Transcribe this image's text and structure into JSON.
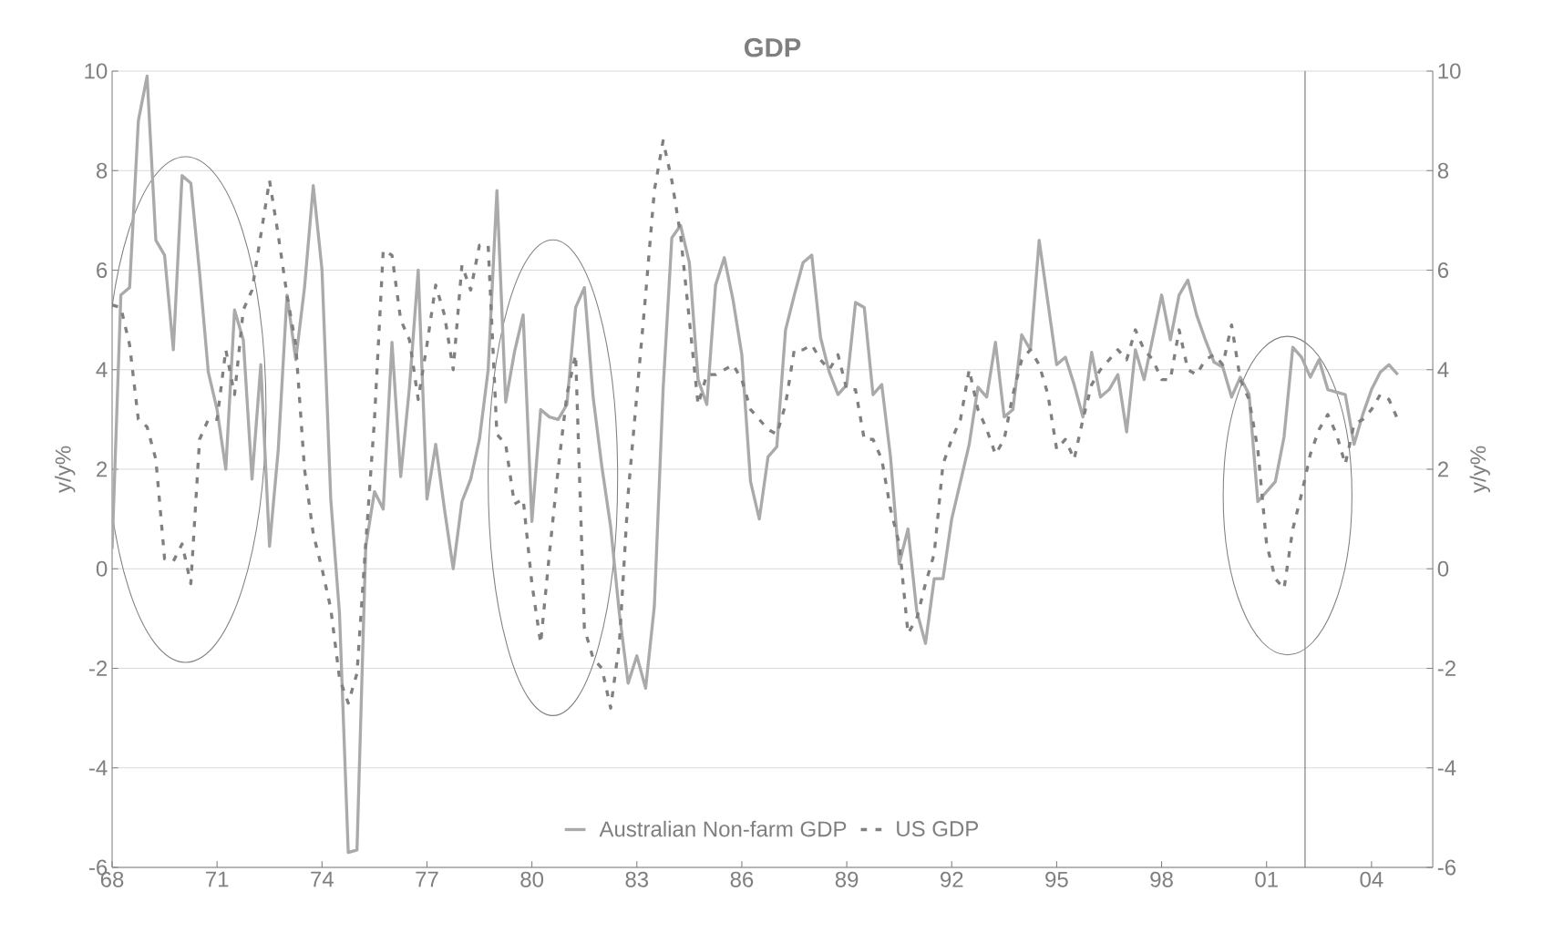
{
  "chart_data": {
    "type": "line",
    "title": "GDP",
    "ylabel": "y/y%",
    "y2label": "y/y%",
    "x": [
      1968,
      1968.25,
      1968.5,
      1968.75,
      1969,
      1969.25,
      1969.5,
      1969.75,
      1970,
      1970.25,
      1970.5,
      1970.75,
      1971,
      1971.25,
      1971.5,
      1971.75,
      1972,
      1972.25,
      1972.5,
      1972.75,
      1973,
      1973.25,
      1973.5,
      1973.75,
      1974,
      1974.25,
      1974.5,
      1974.75,
      1975,
      1975.25,
      1975.5,
      1975.75,
      1976,
      1976.25,
      1976.5,
      1976.75,
      1977,
      1977.25,
      1977.5,
      1977.75,
      1978,
      1978.25,
      1978.5,
      1978.75,
      1979,
      1979.25,
      1979.5,
      1979.75,
      1980,
      1980.25,
      1980.5,
      1980.75,
      1981,
      1981.25,
      1981.5,
      1981.75,
      1982,
      1982.25,
      1982.5,
      1982.75,
      1983,
      1983.25,
      1983.5,
      1983.75,
      1984,
      1984.25,
      1984.5,
      1984.75,
      1985,
      1985.25,
      1985.5,
      1985.75,
      1986,
      1986.25,
      1986.5,
      1986.75,
      1987,
      1987.25,
      1987.5,
      1987.75,
      1988,
      1988.25,
      1988.5,
      1988.75,
      1989,
      1989.25,
      1989.5,
      1989.75,
      1990,
      1990.25,
      1990.5,
      1990.75,
      1991,
      1991.25,
      1991.5,
      1991.75,
      1992,
      1992.25,
      1992.5,
      1992.75,
      1993,
      1993.25,
      1993.5,
      1993.75,
      1994,
      1994.25,
      1994.5,
      1994.75,
      1995,
      1995.25,
      1995.5,
      1995.75,
      1996,
      1996.25,
      1996.5,
      1996.75,
      1997,
      1997.25,
      1997.5,
      1997.75,
      1998,
      1998.25,
      1998.5,
      1998.75,
      1999,
      1999.25,
      1999.5,
      1999.75,
      2000,
      2000.25,
      2000.5,
      2000.75,
      2001,
      2001.25,
      2001.5,
      2001.75,
      2002,
      2002.25,
      2002.5,
      2002.75,
      2003,
      2003.25,
      2003.5,
      2003.75,
      2004,
      2004.25,
      2004.5,
      2004.75
    ],
    "series": [
      {
        "name": "Australian Non-farm GDP",
        "color": "#aaaaaa",
        "line_style": "solid",
        "values": [
          0.4,
          5.5,
          5.65,
          9.0,
          9.9,
          6.6,
          6.3,
          4.4,
          7.9,
          7.75,
          5.95,
          3.95,
          3.2,
          2.0,
          5.2,
          4.6,
          1.8,
          4.1,
          0.45,
          2.4,
          5.5,
          4.2,
          5.65,
          7.7,
          6.0,
          1.4,
          -0.9,
          -5.7,
          -5.65,
          0.45,
          1.55,
          1.2,
          4.55,
          1.85,
          3.65,
          6.0,
          1.4,
          2.5,
          1.2,
          0.0,
          1.35,
          1.8,
          2.6,
          4.0,
          7.6,
          3.35,
          4.35,
          5.1,
          0.95,
          3.2,
          3.05,
          3.0,
          3.3,
          5.25,
          5.65,
          3.45,
          2.05,
          0.85,
          -0.9,
          -2.3,
          -1.75,
          -2.4,
          -0.75,
          3.6,
          6.65,
          6.9,
          6.15,
          3.8,
          3.3,
          5.7,
          6.25,
          5.4,
          4.3,
          1.75,
          1.0,
          2.25,
          2.45,
          4.8,
          5.5,
          6.15,
          6.3,
          4.65,
          3.95,
          3.5,
          3.7,
          5.35,
          5.25,
          3.5,
          3.7,
          2.25,
          0.1,
          0.8,
          -0.85,
          -1.5,
          -0.2,
          -0.2,
          1.0,
          1.75,
          2.5,
          3.65,
          3.45,
          4.55,
          3.05,
          3.2,
          4.7,
          4.4,
          6.6,
          5.35,
          4.1,
          4.25,
          3.7,
          3.05,
          4.35,
          3.45,
          3.6,
          3.9,
          2.75,
          4.4,
          3.8,
          4.65,
          5.5,
          4.6,
          5.5,
          5.8,
          5.1,
          4.6,
          4.15,
          4.05,
          3.45,
          3.85,
          3.5,
          1.35,
          1.55,
          1.75,
          2.65,
          4.45,
          4.25,
          3.85,
          4.2,
          3.6,
          3.55,
          3.5,
          2.5,
          3.1,
          3.6,
          3.95,
          4.1,
          3.9
        ]
      },
      {
        "name": "US GDP",
        "color": "#808080",
        "line_style": "dashed",
        "values": [
          5.3,
          5.25,
          4.5,
          3.0,
          2.85,
          2.2,
          0.2,
          0.15,
          0.5,
          -0.3,
          2.6,
          3.0,
          3.0,
          4.4,
          3.5,
          5.2,
          5.6,
          6.7,
          7.8,
          6.7,
          5.5,
          4.5,
          2.0,
          0.7,
          0.0,
          -0.8,
          -2.2,
          -2.7,
          -2.1,
          0.5,
          3.0,
          6.4,
          6.3,
          5.0,
          4.6,
          3.4,
          4.5,
          5.7,
          5.1,
          4.0,
          6.1,
          5.6,
          6.5,
          6.5,
          2.7,
          2.5,
          1.3,
          1.4,
          -0.3,
          -1.5,
          0.3,
          2.0,
          3.5,
          4.3,
          -1.2,
          -1.8,
          -2.0,
          -2.8,
          -1.5,
          1.5,
          3.5,
          5.5,
          7.6,
          8.6,
          7.8,
          6.7,
          5.0,
          3.3,
          3.9,
          3.9,
          4.0,
          4.1,
          3.8,
          3.2,
          3.0,
          2.8,
          2.7,
          3.3,
          4.4,
          4.4,
          4.5,
          4.2,
          4.0,
          4.3,
          3.6,
          3.6,
          2.6,
          2.6,
          2.2,
          1.2,
          0.5,
          -1.3,
          -1.0,
          -0.3,
          0.3,
          2.1,
          2.6,
          3.0,
          4.0,
          3.2,
          2.8,
          2.3,
          2.6,
          3.5,
          4.2,
          4.4,
          4.1,
          3.5,
          2.4,
          2.6,
          2.2,
          3.0,
          3.7,
          4.0,
          4.2,
          4.4,
          4.2,
          4.8,
          4.4,
          4.2,
          3.8,
          3.8,
          4.8,
          4.0,
          3.9,
          4.2,
          4.3,
          4.1,
          4.9,
          3.8,
          3.4,
          2.4,
          0.5,
          -0.2,
          -0.4,
          0.8,
          1.5,
          2.3,
          2.8,
          3.1,
          2.7,
          2.1,
          2.9,
          3.0,
          3.2,
          3.5,
          3.4,
          3.0
        ]
      }
    ],
    "xlim": [
      1968,
      2005.75
    ],
    "xticks": [
      {
        "value": 1968,
        "label": "68"
      },
      {
        "value": 1971,
        "label": "71"
      },
      {
        "value": 1974,
        "label": "74"
      },
      {
        "value": 1977,
        "label": "77"
      },
      {
        "value": 1980,
        "label": "80"
      },
      {
        "value": 1983,
        "label": "83"
      },
      {
        "value": 1986,
        "label": "86"
      },
      {
        "value": 1989,
        "label": "89"
      },
      {
        "value": 1992,
        "label": "92"
      },
      {
        "value": 1995,
        "label": "95"
      },
      {
        "value": 1998,
        "label": "98"
      },
      {
        "value": 2001,
        "label": "01"
      },
      {
        "value": 2004,
        "label": "04"
      }
    ],
    "ylim": [
      -6,
      10
    ],
    "yticks": [
      -6,
      -4,
      -2,
      0,
      2,
      4,
      6,
      8,
      10
    ],
    "y2lim": [
      -6,
      10
    ],
    "y2ticks": [
      -6,
      -4,
      -2,
      0,
      2,
      4,
      6,
      8,
      10
    ],
    "ref_lines": [
      {
        "axis": "x",
        "value": 2002.1,
        "color": "#707070"
      }
    ],
    "grid": "y",
    "legend": "bottom"
  }
}
